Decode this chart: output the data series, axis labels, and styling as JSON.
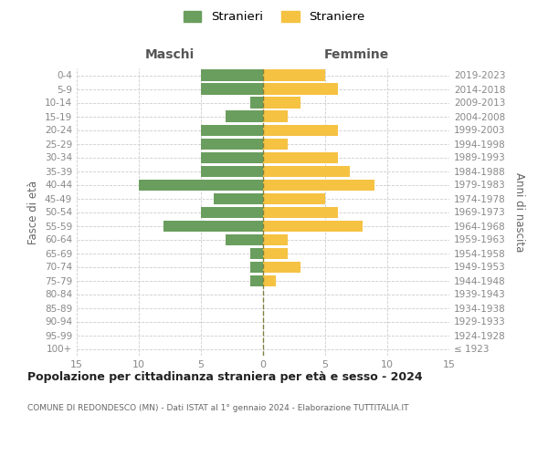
{
  "age_groups": [
    "100+",
    "95-99",
    "90-94",
    "85-89",
    "80-84",
    "75-79",
    "70-74",
    "65-69",
    "60-64",
    "55-59",
    "50-54",
    "45-49",
    "40-44",
    "35-39",
    "30-34",
    "25-29",
    "20-24",
    "15-19",
    "10-14",
    "5-9",
    "0-4"
  ],
  "birth_years": [
    "≤ 1923",
    "1924-1928",
    "1929-1933",
    "1934-1938",
    "1939-1943",
    "1944-1948",
    "1949-1953",
    "1954-1958",
    "1959-1963",
    "1964-1968",
    "1969-1973",
    "1974-1978",
    "1979-1983",
    "1984-1988",
    "1989-1993",
    "1994-1998",
    "1999-2003",
    "2004-2008",
    "2009-2013",
    "2014-2018",
    "2019-2023"
  ],
  "males": [
    0,
    0,
    0,
    0,
    0,
    1,
    1,
    1,
    3,
    8,
    5,
    4,
    10,
    5,
    5,
    5,
    5,
    3,
    1,
    5,
    5
  ],
  "females": [
    0,
    0,
    0,
    0,
    0,
    1,
    3,
    2,
    2,
    8,
    6,
    5,
    9,
    7,
    6,
    2,
    6,
    2,
    3,
    6,
    5
  ],
  "male_color": "#6a9e5e",
  "female_color": "#f5c242",
  "title": "Popolazione per cittadinanza straniera per età e sesso - 2024",
  "subtitle": "COMUNE DI REDONDESCO (MN) - Dati ISTAT al 1° gennaio 2024 - Elaborazione TUTTITALIA.IT",
  "legend_male": "Stranieri",
  "legend_female": "Straniere",
  "xlabel_left": "Maschi",
  "xlabel_right": "Femmine",
  "ylabel_left": "Fasce di età",
  "ylabel_right": "Anni di nascita",
  "xlim": 15,
  "background_color": "#ffffff",
  "grid_color": "#cccccc",
  "bar_height": 0.8
}
